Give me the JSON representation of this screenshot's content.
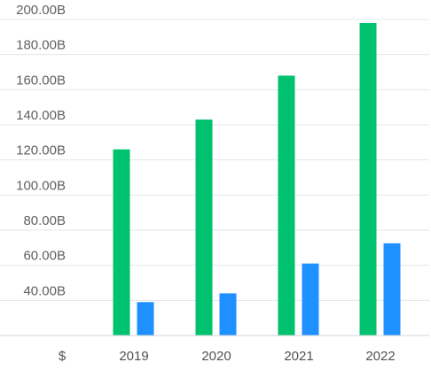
{
  "chart_data": {
    "type": "bar",
    "title": "",
    "xlabel": "",
    "ylabel": "",
    "unit_label": "$",
    "categories": [
      "2019",
      "2020",
      "2021",
      "2022"
    ],
    "series": [
      {
        "color": "#00c26e",
        "values": [
          126,
          143,
          168,
          198
        ]
      },
      {
        "color": "#1e90ff",
        "values": [
          39,
          44,
          61,
          72.5
        ]
      }
    ],
    "ylim": [
      20,
      200
    ],
    "yticks": [
      40,
      60,
      80,
      100,
      120,
      140,
      160,
      180,
      200
    ],
    "ytick_labels": [
      "40.00B",
      "60.00B",
      "80.00B",
      "100.00B",
      "120.00B",
      "140.00B",
      "160.00B",
      "180.00B",
      "200.00B"
    ],
    "grid": true,
    "legend": "none"
  }
}
